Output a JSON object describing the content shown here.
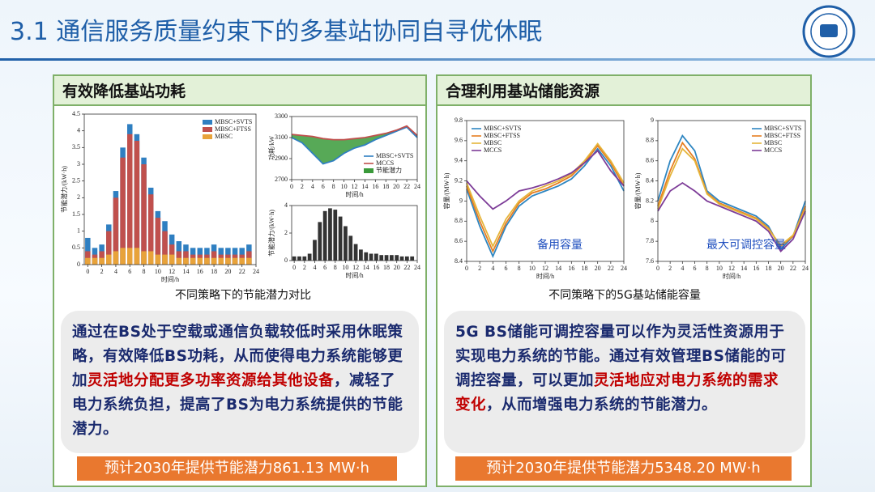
{
  "header": {
    "title": "3.1 通信服务质量约束下的多基站协同自寻优休眠"
  },
  "left_panel": {
    "heading": "有效降低基站功耗",
    "figures": [
      {
        "type": "bar",
        "ylabel": "节能潜力/(kW·h)",
        "xlabel": "时间/h",
        "legend": "upper right",
        "x": [
          0,
          1,
          2,
          3,
          4,
          5,
          6,
          7,
          8,
          9,
          10,
          11,
          12,
          13,
          14,
          15,
          16,
          17,
          18,
          19,
          20,
          21,
          22,
          23
        ],
        "series": [
          {
            "name": "MBSC+SVTS",
            "color": "#2f7fc1",
            "values": [
              0.8,
              0.5,
              0.6,
              1.2,
              2.2,
              3.5,
              4.2,
              3.9,
              3.2,
              2.3,
              1.6,
              1.3,
              0.9,
              0.7,
              0.6,
              0.5,
              0.5,
              0.5,
              0.6,
              0.5,
              0.5,
              0.5,
              0.5,
              0.6
            ]
          },
          {
            "name": "MBSC+FTSS",
            "color": "#c0504d",
            "values": [
              0.4,
              0.3,
              0.4,
              1.0,
              2.0,
              3.2,
              3.9,
              3.7,
              3.0,
              2.1,
              1.4,
              1.0,
              0.6,
              0.4,
              0.4,
              0.3,
              0.3,
              0.3,
              0.4,
              0.3,
              0.3,
              0.3,
              0.3,
              0.4
            ]
          },
          {
            "name": "MBSC",
            "color": "#e8a33a",
            "values": [
              0.2,
              0.2,
              0.2,
              0.3,
              0.4,
              0.5,
              0.5,
              0.5,
              0.4,
              0.4,
              0.3,
              0.3,
              0.3,
              0.2,
              0.2,
              0.2,
              0.2,
              0.2,
              0.2,
              0.2,
              0.2,
              0.2,
              0.2,
              0.2
            ]
          }
        ],
        "xlim": [
          -0.5,
          24
        ],
        "xticks": [
          0,
          2,
          4,
          6,
          8,
          10,
          12,
          14,
          16,
          18,
          20,
          22,
          24
        ],
        "ylim": [
          0,
          4.5
        ],
        "yticks": [
          0,
          0.5,
          1,
          1.5,
          2,
          2.5,
          3,
          3.5,
          4,
          4.5
        ]
      },
      {
        "type": "line",
        "ylabel": "功耗/kW",
        "xlabel": "时间/h",
        "legend": "lower right",
        "x": [
          0,
          2,
          4,
          6,
          8,
          10,
          12,
          14,
          16,
          18,
          20,
          22,
          24
        ],
        "series": [
          {
            "name": "MBSC+SVTS",
            "color": "#2f7fc1",
            "values": [
              3100,
              3050,
              2950,
              2850,
              2880,
              2950,
              3000,
              3030,
              3080,
              3120,
              3160,
              3200,
              3100
            ]
          },
          {
            "name": "MCCS",
            "color": "#c0504d",
            "values": [
              3130,
              3120,
              3110,
              3090,
              3080,
              3080,
              3090,
              3100,
              3120,
              3140,
              3170,
              3210,
              3120
            ]
          }
        ],
        "fill": {
          "name": "节能潜力",
          "color": "#3a9a3a"
        },
        "xlim": [
          0,
          24
        ],
        "xticks": [
          0,
          2,
          4,
          6,
          8,
          10,
          12,
          14,
          16,
          18,
          20,
          22,
          24
        ],
        "ylim": [
          2700,
          3300
        ],
        "yticks": [
          2700,
          2900,
          3100,
          3300
        ]
      },
      {
        "type": "bar",
        "ylabel": "节能潜力/(kW·h)",
        "xlabel": "时间/h",
        "x": [
          0,
          1,
          2,
          3,
          4,
          5,
          6,
          7,
          8,
          9,
          10,
          11,
          12,
          13,
          14,
          15,
          16,
          17,
          18,
          19,
          20,
          21,
          22,
          23
        ],
        "series": [
          {
            "color": "#333333",
            "values": [
              0.3,
              0.3,
              0.3,
              0.5,
              1.5,
              2.8,
              3.6,
              3.8,
              3.7,
              3.2,
              2.5,
              1.8,
              1.2,
              0.8,
              0.6,
              0.5,
              0.5,
              0.4,
              0.4,
              0.4,
              0.4,
              0.3,
              0.3,
              0.3
            ]
          }
        ],
        "xlim": [
          -0.5,
          24
        ],
        "xticks": [
          0,
          2,
          4,
          6,
          8,
          10,
          12,
          14,
          16,
          18,
          20,
          22,
          24
        ],
        "ylim": [
          0,
          4
        ],
        "yticks": [
          0,
          2,
          4
        ]
      }
    ],
    "caption": "不同策略下的节能潜力对比",
    "text": [
      {
        "text": "通过在BS处于空载或通信负载较低时采用休眠策略，有效降低BS功耗，从而使得电力系统能够更加",
        "color": "#1a2a6e"
      },
      {
        "text": "灵活地分配更多功率资源给其他设备",
        "color": "#c00000"
      },
      {
        "text": "，减轻了电力系统负担，提高了BS为电力系统提供的节能潜力。",
        "color": "#1a2a6e"
      }
    ],
    "footer": "预计2030年提供节能潜力861.13 MW·h"
  },
  "right_panel": {
    "heading": "合理利用基站储能资源",
    "figures": [
      {
        "type": "line",
        "ylabel": "容量/(MW·h)",
        "xlabel": "时间/h",
        "legend": "upper left",
        "annotation": "备用容量",
        "x": [
          0,
          2,
          4,
          6,
          8,
          10,
          12,
          14,
          16,
          18,
          20,
          22,
          24
        ],
        "series": [
          {
            "name": "MBSC+SVTS",
            "color": "#2e86c1",
            "values": [
              9.12,
              8.75,
              8.45,
              8.75,
              8.95,
              9.05,
              9.1,
              9.15,
              9.22,
              9.35,
              9.52,
              9.35,
              9.1
            ]
          },
          {
            "name": "MBSC+FTSS",
            "color": "#e67e22",
            "values": [
              9.15,
              8.8,
              8.5,
              8.78,
              8.98,
              9.08,
              9.12,
              9.18,
              9.25,
              9.38,
              9.55,
              9.38,
              9.15
            ]
          },
          {
            "name": "MBSC",
            "color": "#e5b53a",
            "values": [
              9.18,
              8.85,
              8.55,
              8.82,
              9.0,
              9.1,
              9.15,
              9.2,
              9.27,
              9.4,
              9.57,
              9.4,
              9.18
            ]
          },
          {
            "name": "MCCS",
            "color": "#7d3c98",
            "values": [
              9.2,
              9.05,
              8.92,
              9.0,
              9.1,
              9.13,
              9.17,
              9.22,
              9.28,
              9.38,
              9.5,
              9.3,
              9.15
            ]
          }
        ],
        "xlim": [
          0,
          24
        ],
        "xticks": [
          0,
          2,
          4,
          6,
          8,
          10,
          12,
          14,
          16,
          18,
          20,
          22,
          24
        ],
        "ylim": [
          8.4,
          9.8
        ],
        "yticks": [
          8.4,
          8.6,
          8.8,
          9,
          9.2,
          9.4,
          9.6,
          9.8
        ]
      },
      {
        "type": "line",
        "ylabel": "容量/(MW·h)",
        "xlabel": "时间/h",
        "legend": "upper right",
        "annotation": "最大可调控容量",
        "x": [
          0,
          2,
          4,
          6,
          8,
          10,
          12,
          14,
          16,
          18,
          20,
          22,
          24
        ],
        "series": [
          {
            "name": "MBSC+SVTS",
            "color": "#2e86c1",
            "values": [
              8.2,
              8.6,
              8.85,
              8.7,
              8.3,
              8.2,
              8.15,
              8.1,
              8.05,
              7.95,
              7.72,
              7.85,
              8.2
            ]
          },
          {
            "name": "MBSC+FTSS",
            "color": "#e67e22",
            "values": [
              8.15,
              8.5,
              8.78,
              8.62,
              8.28,
              8.18,
              8.13,
              8.08,
              8.03,
              7.93,
              7.75,
              7.85,
              8.15
            ]
          },
          {
            "name": "MBSC",
            "color": "#e5b53a",
            "values": [
              8.12,
              8.45,
              8.72,
              8.6,
              8.27,
              8.17,
              8.12,
              8.07,
              8.02,
              7.92,
              7.76,
              7.86,
              8.12
            ]
          },
          {
            "name": "MCCS",
            "color": "#7d3c98",
            "values": [
              8.1,
              8.3,
              8.38,
              8.3,
              8.2,
              8.15,
              8.1,
              8.05,
              8.0,
              7.9,
              7.7,
              7.82,
              8.1
            ]
          }
        ],
        "xlim": [
          0,
          24
        ],
        "xticks": [
          0,
          2,
          4,
          6,
          8,
          10,
          12,
          14,
          16,
          18,
          20,
          22,
          24
        ],
        "ylim": [
          7.6,
          9
        ],
        "yticks": [
          7.6,
          7.8,
          8,
          8.2,
          8.4,
          8.6,
          8.8,
          9
        ]
      }
    ],
    "caption": "不同策略下的5G基站储能容量",
    "text": [
      {
        "text": "5G BS储能可调控容量可以作为灵活性资源用于实现电力系统的节能。通过有效管理BS储能的可调控容量，可以更加",
        "color": "#1a2a6e"
      },
      {
        "text": "灵活地应对电力系统的需求变化",
        "color": "#c00000"
      },
      {
        "text": "，从而增强电力系统的节能潜力。",
        "color": "#1a2a6e"
      }
    ],
    "footer": "预计2030年提供节能潜力5348.20 MW·h"
  }
}
